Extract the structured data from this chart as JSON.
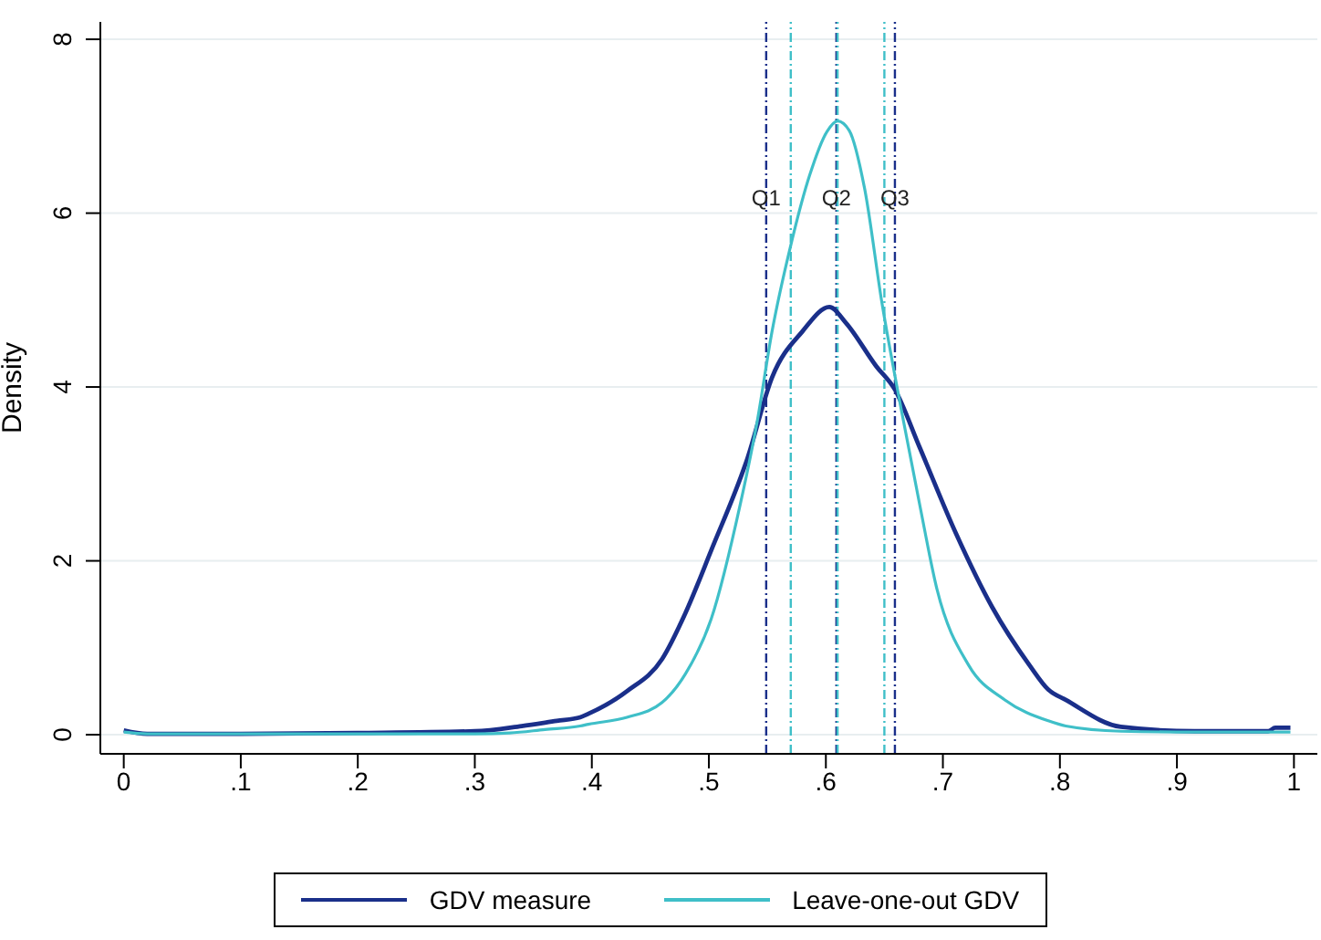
{
  "chart_data": {
    "type": "line",
    "ylabel": "Density",
    "xlim": [
      -0.02,
      1.02
    ],
    "ylim": [
      -0.22,
      8.2
    ],
    "xticks": [
      0,
      {
        "value": 0.1,
        "label": ".1"
      },
      {
        "value": 0.2,
        "label": ".2"
      },
      {
        "value": 0.3,
        "label": ".3"
      },
      {
        "value": 0.4,
        "label": ".4"
      },
      {
        "value": 0.5,
        "label": ".5"
      },
      {
        "value": 0.6,
        "label": ".6"
      },
      {
        "value": 0.7,
        "label": ".7"
      },
      {
        "value": 0.8,
        "label": ".8"
      },
      {
        "value": 0.9,
        "label": ".9"
      },
      1
    ],
    "yticks": [
      0,
      2,
      4,
      6,
      8
    ],
    "grid": "y",
    "legend": "bottom",
    "marker": "none",
    "line_style": "solid",
    "series": [
      {
        "name": "GDV measure",
        "color": "#1a2f8a",
        "x": [
          0,
          0.02,
          0.1,
          0.2,
          0.3,
          0.34,
          0.37,
          0.39,
          0.397,
          0.43,
          0.46,
          0.48,
          0.502,
          0.533,
          0.554,
          0.58,
          0.603,
          0.617,
          0.643,
          0.659,
          0.68,
          0.711,
          0.742,
          0.774,
          0.79,
          0.805,
          0.852,
          0.915,
          0.978,
          0.984,
          0.997
        ],
        "values": [
          0.05,
          0.01,
          0.01,
          0.02,
          0.04,
          0.1,
          0.16,
          0.2,
          0.24,
          0.5,
          0.87,
          1.4,
          2.12,
          3.18,
          4.11,
          4.64,
          4.92,
          4.74,
          4.24,
          3.97,
          3.31,
          2.32,
          1.47,
          0.8,
          0.52,
          0.4,
          0.09,
          0.04,
          0.04,
          0.08,
          0.08
        ]
      },
      {
        "name": "Leave-one-out GDV",
        "color": "#3fbfc8",
        "x": [
          0,
          0.02,
          0.1,
          0.2,
          0.3,
          0.33,
          0.36,
          0.39,
          0.397,
          0.43,
          0.46,
          0.48,
          0.502,
          0.527,
          0.541,
          0.554,
          0.57,
          0.586,
          0.601,
          0.61,
          0.62,
          0.633,
          0.648,
          0.664,
          0.68,
          0.695,
          0.722,
          0.753,
          0.79,
          0.805,
          0.852,
          0.915,
          0.978,
          0.997
        ],
        "values": [
          0.03,
          0.01,
          0.01,
          0.01,
          0.01,
          0.02,
          0.06,
          0.1,
          0.12,
          0.2,
          0.37,
          0.7,
          1.33,
          2.66,
          3.58,
          4.64,
          5.63,
          6.43,
          6.94,
          7.06,
          6.95,
          6.29,
          4.96,
          3.77,
          2.66,
          1.67,
          0.8,
          0.4,
          0.16,
          0.1,
          0.04,
          0.03,
          0.03,
          0.03
        ]
      }
    ],
    "ref_lines": [
      {
        "axis": "x",
        "value": 0.549,
        "label": "Q1",
        "color": "#1a2f8a",
        "line_style": "dashdot"
      },
      {
        "axis": "x",
        "value": 0.609,
        "label": "Q2",
        "color": "#1a2f8a",
        "line_style": "dashdot"
      },
      {
        "axis": "x",
        "value": 0.659,
        "label": "Q3",
        "color": "#1a2f8a",
        "line_style": "dashdot"
      },
      {
        "axis": "x",
        "value": 0.57,
        "color": "#3fbfc8",
        "line_style": "dashdot"
      },
      {
        "axis": "x",
        "value": 0.61,
        "color": "#3fbfc8",
        "line_style": "dashdot"
      },
      {
        "axis": "x",
        "value": 0.65,
        "color": "#3fbfc8",
        "line_style": "dashdot"
      }
    ]
  }
}
